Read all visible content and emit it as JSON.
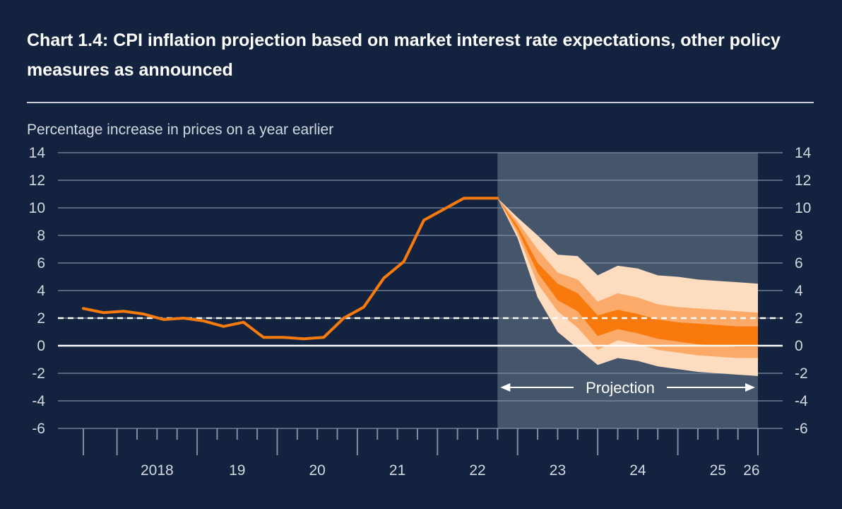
{
  "title": "Chart 1.4: CPI inflation projection based on market interest rate expectations, other policy measures as announced",
  "colors": {
    "background": "#13233f",
    "projection_shade": "#45566b",
    "line": "#f97a0c",
    "band_outer": "#fddcbf",
    "band_mid": "#fbaa6a",
    "band_inner": "#f97a0c",
    "grid": "#7f8ea3",
    "target": "#ffffff"
  },
  "chart_data": {
    "type": "line",
    "title": "Chart 1.4: CPI inflation projection based on market interest rate expectations, other policy measures as announced",
    "ylabel": "Percentage increase in prices on a year earlier",
    "ylim": [
      -6,
      14
    ],
    "yticks": [
      14,
      12,
      10,
      8,
      6,
      4,
      2,
      0,
      -2,
      -4,
      -6
    ],
    "ytick_labels": [
      "14",
      "12",
      "10",
      "8",
      "6",
      "4",
      "2",
      "0",
      "-2",
      "-4",
      "-6"
    ],
    "y_axis_both_sides": true,
    "xlim": [
      2017.58,
      2026.0
    ],
    "xtick_labels": [
      {
        "label": "2018",
        "x": 2018.5
      },
      {
        "label": "19",
        "x": 2019.5
      },
      {
        "label": "20",
        "x": 2020.5
      },
      {
        "label": "21",
        "x": 2021.5
      },
      {
        "label": "22",
        "x": 2022.5
      },
      {
        "label": "23",
        "x": 2023.5
      },
      {
        "label": "24",
        "x": 2024.5
      },
      {
        "label": "25",
        "x": 2025.5
      },
      {
        "label": "26",
        "x": 2025.92
      }
    ],
    "target_line": 2,
    "projection": {
      "start": 2022.75,
      "end": 2026.0,
      "label": "Projection"
    },
    "series": [
      {
        "x": [
          2017.58,
          2017.83,
          2018.08,
          2018.33,
          2018.58,
          2018.83,
          2019.08,
          2019.33,
          2019.58,
          2019.83,
          2020.08,
          2020.33,
          2020.58,
          2020.83,
          2021.08,
          2021.33,
          2021.58,
          2021.83,
          2022.08,
          2022.33,
          2022.58,
          2022.75
        ],
        "y": [
          2.7,
          2.4,
          2.5,
          2.3,
          1.9,
          2.0,
          1.8,
          1.4,
          1.7,
          0.6,
          0.6,
          0.5,
          0.6,
          2.0,
          2.8,
          4.9,
          6.1,
          9.1,
          9.9,
          10.7,
          10.7,
          10.7
        ]
      }
    ],
    "fan_chart": {
      "x": [
        2022.75,
        2023.0,
        2023.25,
        2023.5,
        2023.75,
        2024.0,
        2024.25,
        2024.5,
        2024.75,
        2025.0,
        2025.25,
        2025.5,
        2025.75,
        2026.0
      ],
      "outer_upper": [
        10.7,
        9.3,
        8.0,
        6.6,
        6.5,
        5.1,
        5.8,
        5.6,
        5.1,
        5.0,
        4.8,
        4.7,
        4.6,
        4.5
      ],
      "mid_upper": [
        10.7,
        9.0,
        7.0,
        5.3,
        4.8,
        3.2,
        3.8,
        3.5,
        3.0,
        2.8,
        2.7,
        2.6,
        2.5,
        2.4
      ],
      "inner_upper": [
        10.7,
        8.7,
        6.0,
        4.5,
        3.8,
        2.2,
        2.6,
        2.3,
        1.9,
        1.7,
        1.6,
        1.5,
        1.4,
        1.4
      ],
      "inner_lower": [
        10.7,
        8.4,
        5.3,
        3.3,
        2.5,
        0.7,
        1.2,
        0.9,
        0.5,
        0.3,
        0.1,
        0.0,
        -0.1,
        -0.1
      ],
      "mid_lower": [
        10.7,
        8.1,
        4.5,
        2.5,
        1.3,
        -0.3,
        0.4,
        0.1,
        -0.3,
        -0.5,
        -0.7,
        -0.8,
        -0.9,
        -0.9
      ],
      "outer_lower": [
        10.7,
        7.8,
        3.5,
        1.0,
        -0.2,
        -1.4,
        -0.9,
        -1.1,
        -1.5,
        -1.7,
        -1.9,
        -2.0,
        -2.1,
        -2.2
      ]
    }
  }
}
